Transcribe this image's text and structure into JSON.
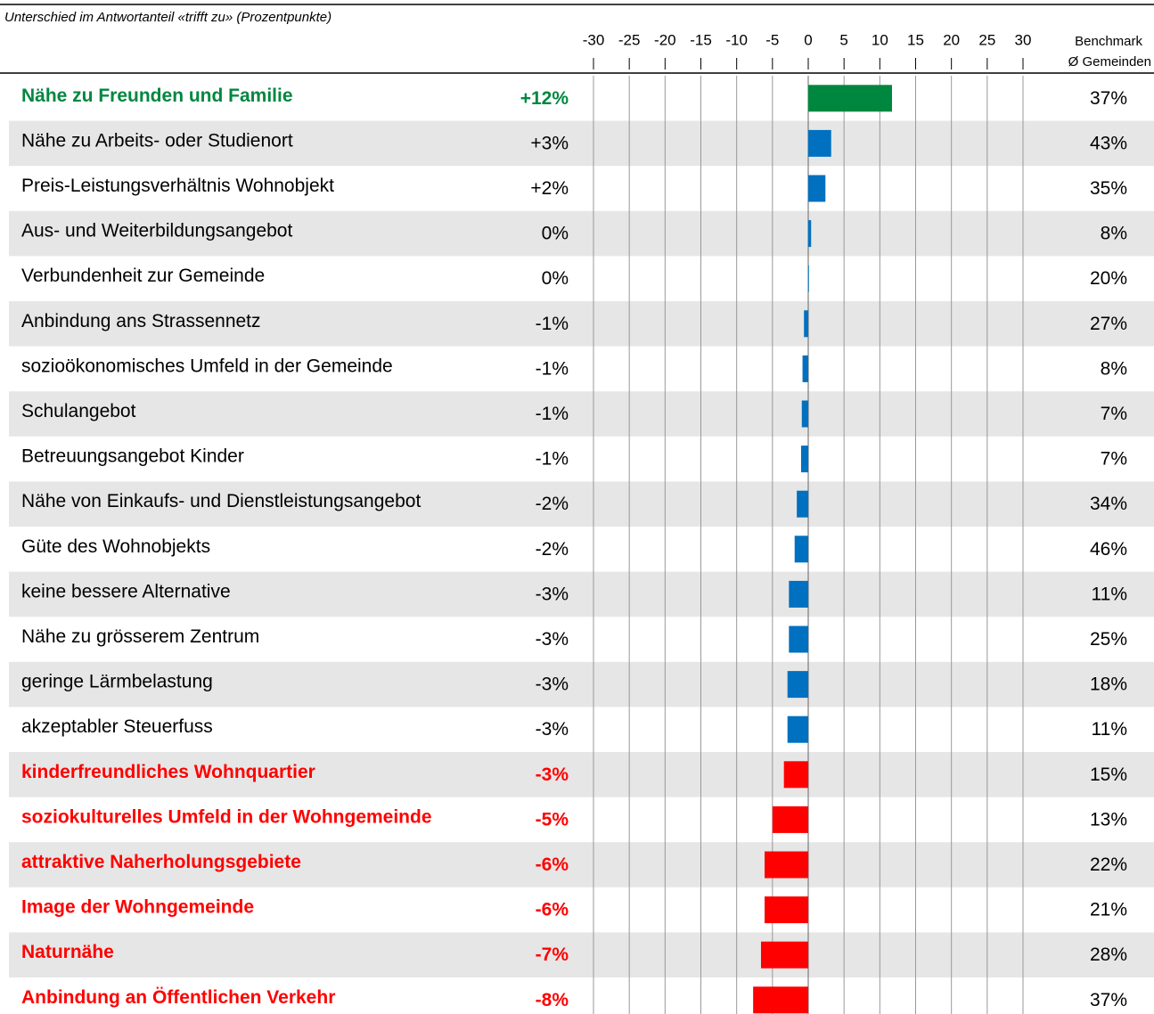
{
  "chart_data": {
    "type": "bar",
    "orientation": "horizontal",
    "x_label": "Unterschied im Antwortanteil «trifft zu» (Prozentpunkte)",
    "categories": [
      "Nähe zu Freunden und Familie",
      "Nähe zu Arbeits- oder Studienort",
      "Preis-Leistungsverhältnis Wohnobjekt",
      "Aus- und Weiterbildungsangebot",
      "Verbundenheit zur Gemeinde",
      "Anbindung ans Strassennetz",
      "sozioökonomisches Umfeld in der Gemeinde",
      "Schulangebot",
      "Betreuungsangebot Kinder",
      "Nähe von Einkaufs- und Dienstleistungsangebot",
      "Güte des Wohnobjekts",
      "keine bessere Alternative",
      "Nähe zu grösserem Zentrum",
      "geringe Lärmbelastung",
      "akzeptabler Steuerfuss",
      "kinderfreundliches Wohnquartier",
      "soziokulturelles Umfeld in der Wohngemeinde",
      "attraktive Naherholungsgebiete",
      "Image der Wohngemeinde",
      "Naturnähe",
      "Anbindung an Öffentlichen Verkehr"
    ],
    "values": [
      11.7,
      3.2,
      2.4,
      0.4,
      0.1,
      -0.6,
      -0.8,
      -0.9,
      -1.0,
      -1.6,
      -1.9,
      -2.7,
      -2.7,
      -2.9,
      -2.9,
      -3.4,
      -5.0,
      -6.1,
      -6.1,
      -6.6,
      -7.7
    ],
    "value_labels": [
      "+12%",
      "+3%",
      "+2%",
      "0%",
      "0%",
      "-1%",
      "-1%",
      "-1%",
      "-1%",
      "-2%",
      "-2%",
      "-3%",
      "-3%",
      "-3%",
      "-3%",
      "-3%",
      "-5%",
      "-6%",
      "-6%",
      "-7%",
      "-8%"
    ],
    "colors": [
      "#00873f",
      "#0070c0",
      "#0070c0",
      "#0070c0",
      "#0070c0",
      "#0070c0",
      "#0070c0",
      "#0070c0",
      "#0070c0",
      "#0070c0",
      "#0070c0",
      "#0070c0",
      "#0070c0",
      "#0070c0",
      "#0070c0",
      "#ff0000",
      "#ff0000",
      "#ff0000",
      "#ff0000",
      "#ff0000",
      "#ff0000"
    ],
    "label_colors": [
      "#00873f",
      "#000000",
      "#000000",
      "#000000",
      "#000000",
      "#000000",
      "#000000",
      "#000000",
      "#000000",
      "#000000",
      "#000000",
      "#000000",
      "#000000",
      "#000000",
      "#000000",
      "#ff0000",
      "#ff0000",
      "#ff0000",
      "#ff0000",
      "#ff0000",
      "#ff0000"
    ],
    "xlim": [
      -30,
      30
    ],
    "xticks": [
      -30,
      -25,
      -20,
      -15,
      -10,
      -5,
      0,
      5,
      10,
      15,
      20,
      25,
      30
    ],
    "grid": true,
    "benchmark": {
      "title": [
        "Benchmark",
        "Ø Gemeinden"
      ],
      "values": [
        37,
        43,
        35,
        8,
        20,
        27,
        8,
        7,
        7,
        34,
        46,
        11,
        25,
        18,
        11,
        15,
        13,
        22,
        21,
        28,
        37
      ],
      "value_labels": [
        "37%",
        "43%",
        "35%",
        "8%",
        "20%",
        "27%",
        "8%",
        "7%",
        "7%",
        "34%",
        "46%",
        "11%",
        "25%",
        "18%",
        "11%",
        "15%",
        "13%",
        "22%",
        "21%",
        "28%",
        "37%"
      ]
    }
  }
}
